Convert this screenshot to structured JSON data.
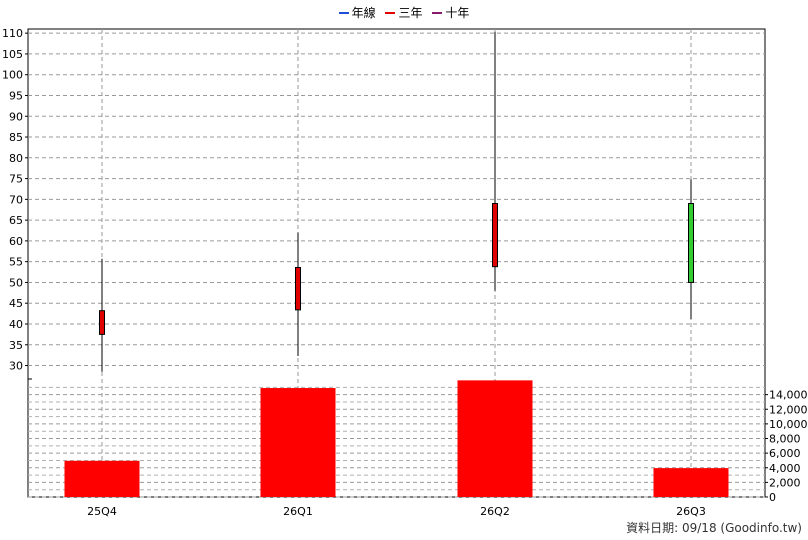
{
  "legend": [
    {
      "name": "年線",
      "color": "#1f4fd6"
    },
    {
      "name": "三年",
      "color": "#e00000"
    },
    {
      "name": "十年",
      "color": "#8a1a6a"
    }
  ],
  "footer": "資料日期: 09/18  (Goodinfo.tw)",
  "chart_data": {
    "type": "candlestick",
    "categories": [
      "25Q4",
      "26Q1",
      "26Q2",
      "26Q3"
    ],
    "price_axis": {
      "ylim": [
        27,
        111
      ],
      "ticks": [
        30,
        35,
        40,
        45,
        50,
        55,
        60,
        65,
        70,
        75,
        80,
        85,
        90,
        95,
        100,
        105,
        110
      ]
    },
    "candles": [
      {
        "category": "25Q4",
        "open": 37.5,
        "close": 43.2,
        "high": 55.7,
        "low": 28.5,
        "color": "#e00000"
      },
      {
        "category": "26Q1",
        "open": 43.4,
        "close": 53.6,
        "high": 62.0,
        "low": 32.3,
        "color": "#e00000"
      },
      {
        "category": "26Q2",
        "open": 53.8,
        "close": 69.0,
        "high": 110.3,
        "low": 48.0,
        "color": "#e00000"
      },
      {
        "category": "26Q3",
        "open": 69.0,
        "close": 50.0,
        "high": 74.8,
        "low": 41.2,
        "color": "#33cc33"
      }
    ],
    "volume_axis": {
      "ylim": [
        0,
        16000
      ],
      "ticks": [
        0,
        2000,
        4000,
        6000,
        8000,
        10000,
        12000,
        14000
      ],
      "tick_labels": [
        "0",
        "2,000",
        "4,000",
        "6,000",
        "8,000",
        "10,000",
        "12,000",
        "14,000"
      ]
    },
    "volume": [
      4950,
      14900,
      15950,
      3950
    ],
    "volume_color": "#ff0000",
    "grid": true
  }
}
